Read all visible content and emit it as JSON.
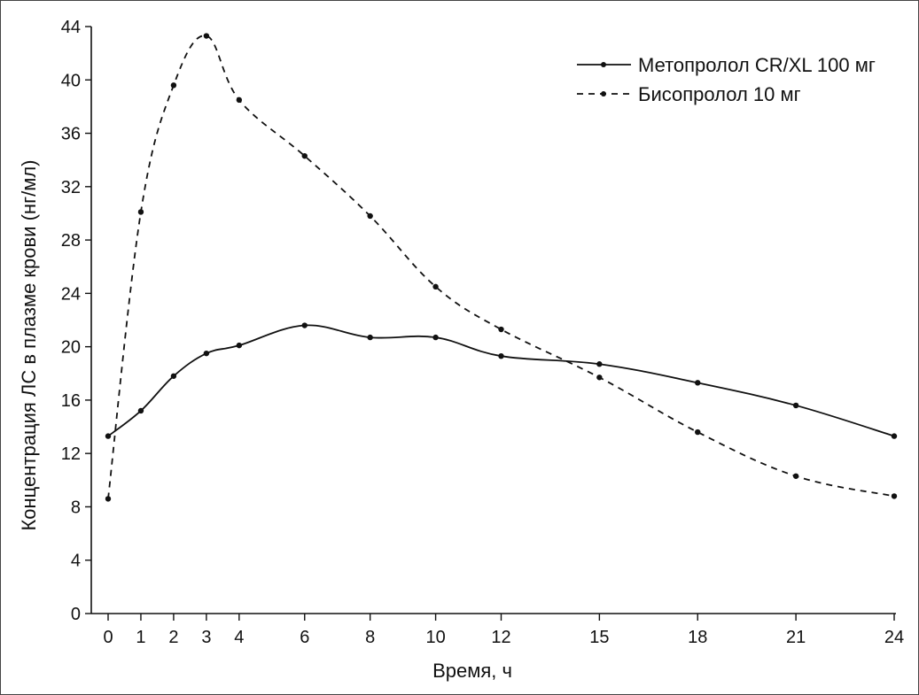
{
  "chart_data": {
    "type": "line",
    "xlabel": "Время, ч",
    "ylabel": "Концентрация ЛС в плазме крови (нг/мл)",
    "xlim": [
      0,
      24
    ],
    "ylim": [
      0,
      44
    ],
    "x_ticks": [
      0,
      1,
      2,
      3,
      4,
      6,
      8,
      10,
      12,
      15,
      18,
      21,
      24
    ],
    "y_ticks": [
      0,
      4,
      8,
      12,
      16,
      20,
      24,
      28,
      32,
      36,
      40,
      44
    ],
    "grid": false,
    "legend_position": "top-right",
    "series": [
      {
        "name": "Метопролол CR/XL 100 мг",
        "style": "solid",
        "x": [
          0,
          1,
          2,
          3,
          4,
          6,
          8,
          10,
          12,
          15,
          18,
          21,
          24
        ],
        "values": [
          13.3,
          15.2,
          17.8,
          19.5,
          20.1,
          21.6,
          20.7,
          20.7,
          19.3,
          18.7,
          17.3,
          15.6,
          13.3
        ]
      },
      {
        "name": "Бисопролол 10 мг",
        "style": "dashed",
        "x": [
          0,
          1,
          2,
          3,
          4,
          6,
          8,
          10,
          12,
          15,
          18,
          21,
          24
        ],
        "values": [
          8.6,
          30.1,
          39.6,
          43.3,
          38.5,
          34.3,
          29.8,
          24.5,
          21.3,
          17.7,
          13.6,
          10.3,
          8.8
        ]
      }
    ]
  }
}
